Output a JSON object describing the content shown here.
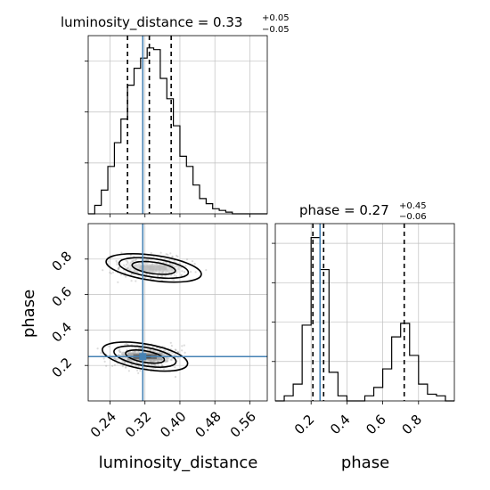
{
  "chart_data": {
    "type": "corner",
    "parameters": [
      "luminosity_distance",
      "phase"
    ],
    "truths": {
      "luminosity_distance": 0.315,
      "phase": 0.25
    },
    "titles": [
      {
        "param": "luminosity_distance",
        "text": "luminosity_distance = 0.33",
        "plus": "+0.05",
        "minus": "−0.05"
      },
      {
        "param": "phase",
        "text": "phase = 0.27",
        "plus": "+0.45",
        "minus": "−0.06"
      }
    ],
    "panels": {
      "luminosity_distance_hist": {
        "type": "histogram",
        "xlim": [
          0.19,
          0.6
        ],
        "ylim": [
          0,
          1
        ],
        "grid": true,
        "bins": [
          {
            "x0": 0.19,
            "x1": 0.205,
            "count": 0.0
          },
          {
            "x0": 0.205,
            "x1": 0.22,
            "count": 0.05
          },
          {
            "x0": 0.22,
            "x1": 0.235,
            "count": 0.14
          },
          {
            "x0": 0.235,
            "x1": 0.25,
            "count": 0.28
          },
          {
            "x0": 0.25,
            "x1": 0.265,
            "count": 0.42
          },
          {
            "x0": 0.265,
            "x1": 0.28,
            "count": 0.56
          },
          {
            "x0": 0.28,
            "x1": 0.295,
            "count": 0.76
          },
          {
            "x0": 0.295,
            "x1": 0.31,
            "count": 0.86
          },
          {
            "x0": 0.31,
            "x1": 0.325,
            "count": 0.92
          },
          {
            "x0": 0.325,
            "x1": 0.34,
            "count": 0.98
          },
          {
            "x0": 0.34,
            "x1": 0.355,
            "count": 0.97
          },
          {
            "x0": 0.355,
            "x1": 0.37,
            "count": 0.8
          },
          {
            "x0": 0.37,
            "x1": 0.385,
            "count": 0.68
          },
          {
            "x0": 0.385,
            "x1": 0.4,
            "count": 0.52
          },
          {
            "x0": 0.4,
            "x1": 0.415,
            "count": 0.34
          },
          {
            "x0": 0.415,
            "x1": 0.43,
            "count": 0.28
          },
          {
            "x0": 0.43,
            "x1": 0.445,
            "count": 0.17
          },
          {
            "x0": 0.445,
            "x1": 0.46,
            "count": 0.09
          },
          {
            "x0": 0.46,
            "x1": 0.475,
            "count": 0.06
          },
          {
            "x0": 0.475,
            "x1": 0.49,
            "count": 0.03
          },
          {
            "x0": 0.49,
            "x1": 0.505,
            "count": 0.02
          },
          {
            "x0": 0.505,
            "x1": 0.52,
            "count": 0.01
          },
          {
            "x0": 0.52,
            "x1": 0.6,
            "count": 0.0
          }
        ],
        "quantiles": [
          0.28,
          0.33,
          0.38
        ],
        "truth": 0.315
      },
      "phase_hist": {
        "type": "histogram",
        "xlim": [
          0.0,
          1.0
        ],
        "ylim": [
          0,
          1
        ],
        "grid": true,
        "bins": [
          {
            "x0": 0.0,
            "x1": 0.05,
            "count": 0.0
          },
          {
            "x0": 0.05,
            "x1": 0.1,
            "count": 0.03
          },
          {
            "x0": 0.1,
            "x1": 0.15,
            "count": 0.1
          },
          {
            "x0": 0.15,
            "x1": 0.2,
            "count": 0.45
          },
          {
            "x0": 0.2,
            "x1": 0.25,
            "count": 0.97
          },
          {
            "x0": 0.25,
            "x1": 0.3,
            "count": 0.78
          },
          {
            "x0": 0.3,
            "x1": 0.35,
            "count": 0.17
          },
          {
            "x0": 0.35,
            "x1": 0.4,
            "count": 0.03
          },
          {
            "x0": 0.4,
            "x1": 0.45,
            "count": 0.0
          },
          {
            "x0": 0.45,
            "x1": 0.5,
            "count": 0.0
          },
          {
            "x0": 0.5,
            "x1": 0.55,
            "count": 0.03
          },
          {
            "x0": 0.55,
            "x1": 0.6,
            "count": 0.08
          },
          {
            "x0": 0.6,
            "x1": 0.65,
            "count": 0.19
          },
          {
            "x0": 0.65,
            "x1": 0.7,
            "count": 0.38
          },
          {
            "x0": 0.7,
            "x1": 0.75,
            "count": 0.46
          },
          {
            "x0": 0.75,
            "x1": 0.8,
            "count": 0.27
          },
          {
            "x0": 0.8,
            "x1": 0.85,
            "count": 0.1
          },
          {
            "x0": 0.85,
            "x1": 0.9,
            "count": 0.04
          },
          {
            "x0": 0.9,
            "x1": 0.95,
            "count": 0.03
          },
          {
            "x0": 0.95,
            "x1": 1.0,
            "count": 0.0
          }
        ],
        "quantiles": [
          0.21,
          0.27,
          0.72
        ],
        "truth": 0.25
      },
      "joint": {
        "type": "contour",
        "xlim": [
          0.19,
          0.6
        ],
        "ylim": [
          0.0,
          1.0
        ],
        "grid": true,
        "modes": [
          {
            "x": 0.32,
            "y": 0.25,
            "sx": 0.045,
            "sy": 0.045,
            "weight": 0.6
          },
          {
            "x": 0.34,
            "y": 0.75,
            "sx": 0.05,
            "sy": 0.045,
            "weight": 0.4
          }
        ],
        "truth": {
          "x": 0.315,
          "y": 0.25
        }
      }
    },
    "xticks": {
      "luminosity_distance": [
        "0.24",
        "0.32",
        "0.40",
        "0.48",
        "0.56"
      ],
      "phase": [
        "0.2",
        "0.4",
        "0.6",
        "0.8"
      ]
    },
    "yticks": {
      "phase": [
        "0.2",
        "0.4",
        "0.6",
        "0.8"
      ]
    },
    "xlabels": [
      "luminosity_distance",
      "phase"
    ],
    "ylabels": [
      "phase"
    ],
    "colors": {
      "truth": "#4682b4",
      "hist": "#000000",
      "grid": "#c0c0c0",
      "quantile": "#000000"
    }
  }
}
